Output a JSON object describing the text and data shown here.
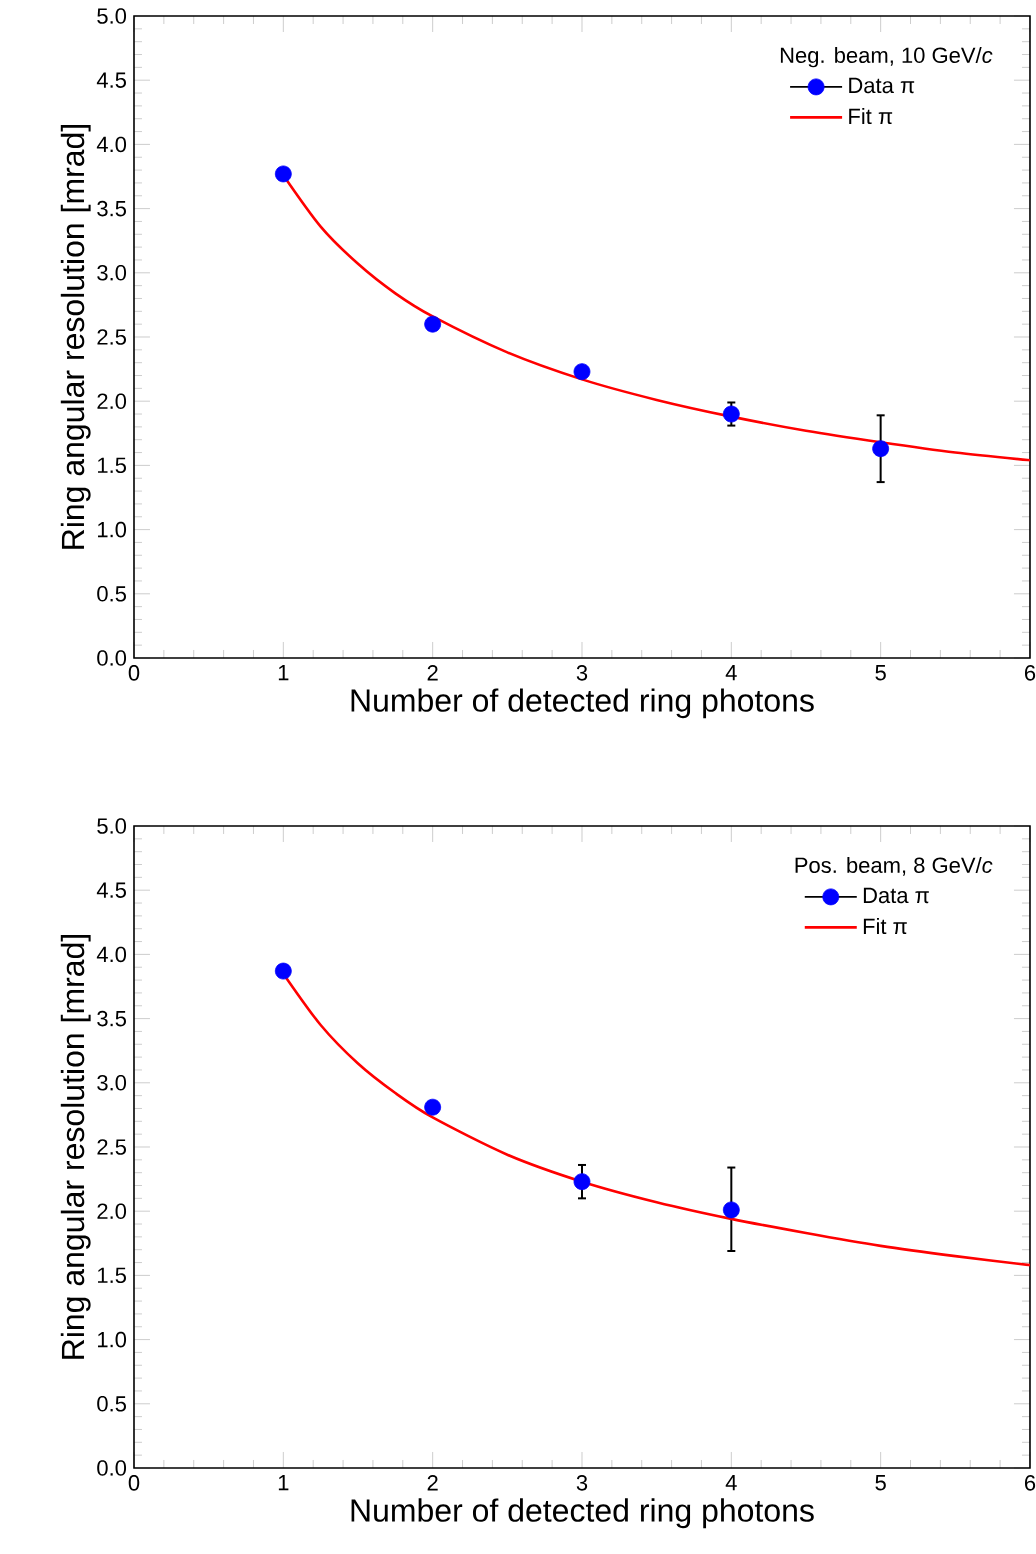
{
  "chart_data": [
    {
      "type": "scatter",
      "legend_title": "Neg. beam, 10 GeV/*c*",
      "xlabel": "Number of detected ring photons",
      "ylabel": "Ring angular resolution [mrad]",
      "xlim": [
        0,
        6
      ],
      "ylim": [
        0,
        5
      ],
      "xticks": [
        0,
        1,
        2,
        3,
        4,
        5,
        6
      ],
      "yticks": [
        {
          "value": 0,
          "label": "0.0"
        },
        {
          "value": 0.5,
          "label": "0.5"
        },
        {
          "value": 1,
          "label": "1.0"
        },
        {
          "value": 1.5,
          "label": "1.5"
        },
        {
          "value": 2,
          "label": "2.0"
        },
        {
          "value": 2.5,
          "label": "2.5"
        },
        {
          "value": 3,
          "label": "3.0"
        },
        {
          "value": 3.5,
          "label": "3.5"
        },
        {
          "value": 4,
          "label": "4.0"
        },
        {
          "value": 4.5,
          "label": "4.5"
        },
        {
          "value": 5,
          "label": "5.0"
        }
      ],
      "legend": "top right",
      "series": [
        {
          "name": "Data π",
          "type": "scatter",
          "marker": "circle",
          "color": "#0000ff",
          "x": [
            1,
            2,
            3,
            4,
            5
          ],
          "values": [
            3.77,
            2.6,
            2.23,
            1.9,
            1.63
          ],
          "errors": [
            null,
            null,
            null,
            0.09,
            0.26
          ]
        },
        {
          "name": "Fit π",
          "type": "line",
          "color": "#ff0000",
          "x": [
            1,
            1.25,
            1.5,
            1.75,
            2,
            2.5,
            3,
            3.5,
            4,
            4.5,
            5,
            5.5,
            6
          ],
          "values": [
            3.76,
            3.36,
            3.07,
            2.84,
            2.66,
            2.38,
            2.17,
            2.01,
            1.88,
            1.77,
            1.68,
            1.6,
            1.54
          ]
        }
      ]
    },
    {
      "type": "scatter",
      "legend_title": "Pos. beam, 8 GeV/*c*",
      "xlabel": "Number of detected ring photons",
      "ylabel": "Ring angular resolution [mrad]",
      "xlim": [
        0,
        6
      ],
      "ylim": [
        0,
        5
      ],
      "xticks": [
        0,
        1,
        2,
        3,
        4,
        5,
        6
      ],
      "yticks": [
        {
          "value": 0,
          "label": "0.0"
        },
        {
          "value": 0.5,
          "label": "0.5"
        },
        {
          "value": 1,
          "label": "1.0"
        },
        {
          "value": 1.5,
          "label": "1.5"
        },
        {
          "value": 2,
          "label": "2.0"
        },
        {
          "value": 2.5,
          "label": "2.5"
        },
        {
          "value": 3,
          "label": "3.0"
        },
        {
          "value": 3.5,
          "label": "3.5"
        },
        {
          "value": 4,
          "label": "4.0"
        },
        {
          "value": 4.5,
          "label": "4.5"
        },
        {
          "value": 5,
          "label": "5.0"
        }
      ],
      "legend": "top right",
      "series": [
        {
          "name": "Data π",
          "type": "scatter",
          "marker": "circle",
          "color": "#0000ff",
          "x": [
            1,
            2,
            3,
            4
          ],
          "values": [
            3.87,
            2.81,
            2.23,
            2.01
          ],
          "errors": [
            null,
            null,
            0.13,
            [
              1.69,
              2.34
            ]
          ]
        },
        {
          "name": "Fit π",
          "type": "line",
          "color": "#ff0000",
          "x": [
            1,
            1.25,
            1.5,
            1.75,
            2,
            2.5,
            3,
            3.5,
            4,
            4.5,
            5,
            5.5,
            6
          ],
          "values": [
            3.85,
            3.45,
            3.15,
            2.92,
            2.73,
            2.44,
            2.23,
            2.07,
            1.94,
            1.83,
            1.73,
            1.65,
            1.58
          ]
        }
      ]
    }
  ]
}
